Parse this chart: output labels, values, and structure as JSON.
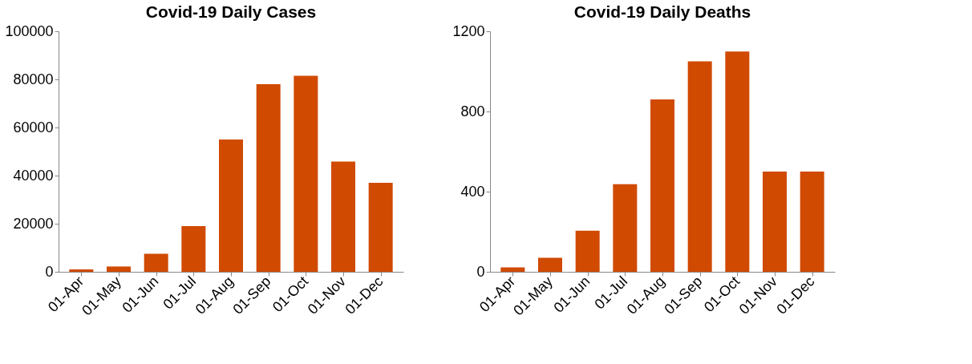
{
  "chart_data": [
    {
      "type": "bar",
      "title": "Covid-19 Daily Cases",
      "categories": [
        "01-Apr",
        "01-May",
        "01-Jun",
        "01-Jul",
        "01-Aug",
        "01-Sep",
        "01-Oct",
        "01-Nov",
        "01-Dec"
      ],
      "series": [
        {
          "color": "#d04a02",
          "values": [
            1000,
            2200,
            7500,
            19000,
            55000,
            78000,
            81500,
            45800,
            37000
          ]
        }
      ],
      "ylim": [
        0,
        100000
      ],
      "yticks": [
        0,
        20000,
        40000,
        60000,
        80000,
        100000
      ],
      "grid": false
    },
    {
      "type": "bar",
      "title": "Covid-19 Daily Deaths",
      "categories": [
        "01-Apr",
        "01-May",
        "01-Jun",
        "01-Jul",
        "01-Aug",
        "01-Sep",
        "01-Oct",
        "01-Nov",
        "01-Dec"
      ],
      "series": [
        {
          "color": "#d04a02",
          "values": [
            22,
            70,
            205,
            437,
            860,
            1050,
            1099,
            500,
            500
          ]
        }
      ],
      "ylim": [
        0,
        1200
      ],
      "yticks": [
        0,
        400,
        800,
        1200
      ],
      "grid": false
    }
  ]
}
